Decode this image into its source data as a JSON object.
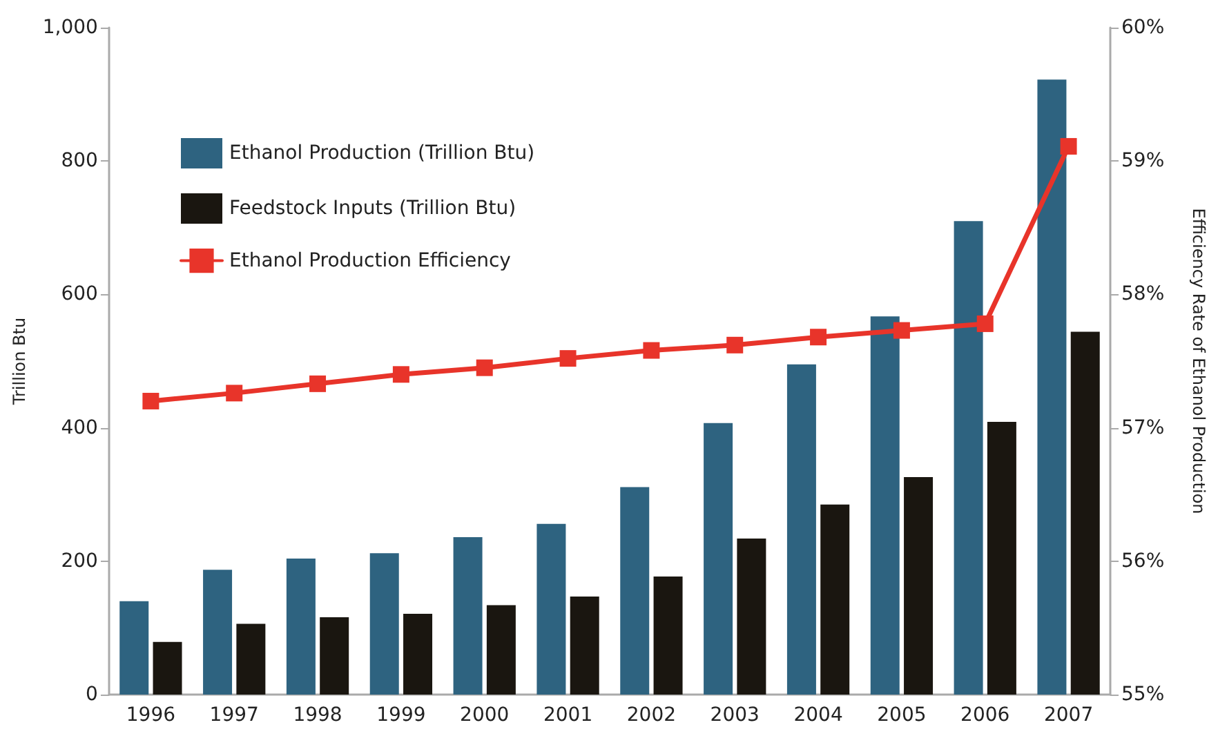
{
  "chart_data": {
    "type": "bar",
    "ylabel": "Trillion Btu",
    "y2label": "Efficiency Rate of Ethanol Production",
    "categories": [
      "1996",
      "1997",
      "1998",
      "1999",
      "2000",
      "2001",
      "2002",
      "2003",
      "2004",
      "2005",
      "2006",
      "2007"
    ],
    "series": [
      {
        "name": "Ethanol Production (Trillion Btu)",
        "color": "#2e6380",
        "values": [
          140,
          187,
          204,
          212,
          236,
          256,
          311,
          407,
          495,
          567,
          710,
          922
        ]
      },
      {
        "name": "Feedstock Inputs (Trillion Btu)",
        "color": "#1a1610",
        "values": [
          79,
          106,
          116,
          121,
          134,
          147,
          177,
          234,
          285,
          326,
          409,
          544
        ]
      },
      {
        "name": "Ethanol Production Efficiency",
        "type": "line",
        "axis": "y2",
        "color": "#e8342a",
        "marker": "square",
        "line_style": "solid",
        "values": [
          57.2,
          57.26,
          57.33,
          57.4,
          57.45,
          57.52,
          57.58,
          57.62,
          57.68,
          57.73,
          57.78,
          59.11
        ]
      }
    ],
    "ylim": [
      0,
      1000
    ],
    "yticks": [
      0,
      200,
      400,
      600,
      800,
      {
        "value": 1000,
        "label": "1,000"
      }
    ],
    "y2lim": [
      55,
      60
    ],
    "y2ticks": [
      {
        "value": 55,
        "label": "55%"
      },
      {
        "value": 56,
        "label": "56%"
      },
      {
        "value": 57,
        "label": "57%"
      },
      {
        "value": 58,
        "label": "58%"
      },
      {
        "value": 59,
        "label": "59%"
      },
      {
        "value": 60,
        "label": "60%"
      }
    ],
    "grid": false,
    "legend": "top left"
  }
}
